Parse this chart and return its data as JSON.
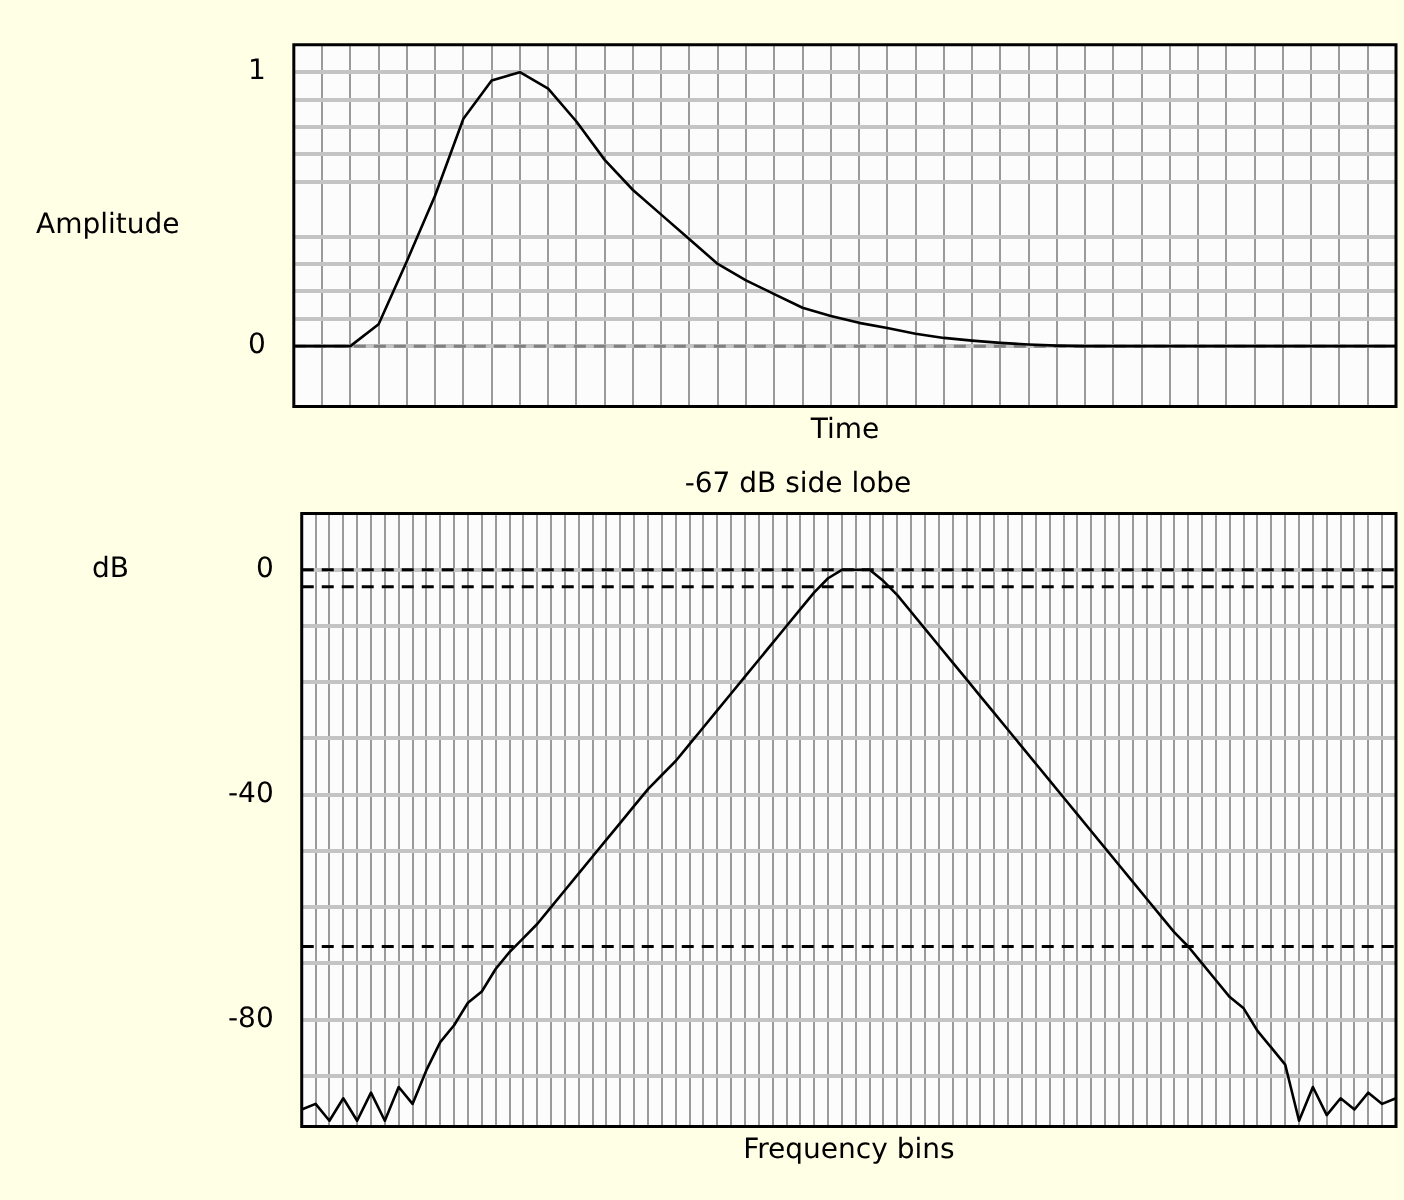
{
  "chart_data": [
    {
      "type": "line",
      "xlabel": "Time",
      "ylabel": "Amplitude",
      "categories": [
        null,
        null,
        null,
        null,
        null,
        null,
        null,
        null,
        null,
        null,
        null,
        null,
        null,
        null,
        null,
        null,
        null,
        null,
        null,
        null,
        null,
        null,
        null,
        null,
        null,
        null,
        null,
        null,
        null,
        null,
        null,
        null,
        null,
        null,
        null,
        null,
        null,
        null,
        null,
        null
      ],
      "values": [
        0,
        0,
        0,
        0.08,
        0.31,
        0.55,
        0.83,
        0.97,
        1,
        0.94,
        0.82,
        0.68,
        0.57,
        0.48,
        0.39,
        0.3,
        0.24,
        0.19,
        0.14,
        0.11,
        0.085,
        0.066,
        0.045,
        0.03,
        0.02,
        0.012,
        0.006,
        0.002,
        0,
        0,
        0,
        0,
        0,
        0,
        0,
        0,
        0,
        0,
        0,
        0
      ],
      "color": "#000000",
      "ylim": [
        -0.22,
        1.1
      ],
      "yticks": [
        0,
        {
          "value": 0.1,
          "label": null
        },
        {
          "value": 0.2,
          "label": null
        },
        {
          "value": 0.3,
          "label": null
        },
        {
          "value": 0.4,
          "label": null
        },
        {
          "value": 0.6,
          "label": null
        },
        {
          "value": 0.7,
          "label": null
        },
        {
          "value": 0.8,
          "label": null
        },
        {
          "value": 0.9,
          "label": null
        },
        1
      ],
      "grid": true,
      "legend": false,
      "marker": "none",
      "line_style": "solid",
      "ref_lines": [
        {
          "axis": "y",
          "value": 0,
          "color": "#808080",
          "line_style": "dashed"
        }
      ]
    },
    {
      "type": "line",
      "title": "-67 dB side lobe",
      "xlabel": "Frequency bins",
      "ylabel": "dB",
      "categories": [
        null,
        null,
        null,
        null,
        null,
        null,
        null,
        null,
        null,
        null,
        null,
        null,
        null,
        null,
        null,
        null,
        null,
        null,
        null,
        null,
        null,
        null,
        null,
        null,
        null,
        null,
        null,
        null,
        null,
        null,
        null,
        null,
        null,
        null,
        null,
        null,
        null,
        null,
        null,
        null,
        null,
        null,
        null,
        null,
        null,
        null,
        null,
        null,
        null,
        null,
        null,
        null,
        null,
        null,
        null,
        null,
        null,
        null,
        null,
        null,
        null,
        null,
        null,
        null,
        null,
        null,
        null,
        null,
        null,
        null,
        null,
        null,
        null,
        null,
        null,
        null,
        null,
        null,
        null,
        null
      ],
      "values": [
        -96,
        -95,
        -98,
        -94,
        -98,
        -93,
        -98,
        -92,
        -95,
        -89,
        -84,
        -81,
        -77,
        -75,
        -71,
        -68,
        -65.5,
        -63,
        -60,
        -57,
        -54,
        -51,
        -48,
        -45,
        -42,
        -39,
        -36.5,
        -34,
        -31,
        -28,
        -25,
        -22,
        -19,
        -16,
        -13,
        -10,
        -7,
        -4,
        -1.5,
        0,
        0,
        0,
        -2,
        -4.5,
        -7.5,
        -10.5,
        -13.5,
        -16.5,
        -19.5,
        -22.5,
        -25.5,
        -28.5,
        -31.5,
        -34.5,
        -37.5,
        -40.5,
        -43.5,
        -46.5,
        -49.5,
        -52.5,
        -55.5,
        -58.5,
        -61.5,
        -64.5,
        -67,
        -70,
        -73,
        -76,
        -78,
        -82,
        -85,
        -88,
        -98,
        -92,
        -97,
        -94,
        -96,
        -93,
        -95,
        -94
      ],
      "color": "#000000",
      "ylim": [
        -99,
        10
      ],
      "yticks": [
        {
          "value": -90,
          "label": null
        },
        -80,
        {
          "value": -70,
          "label": null
        },
        {
          "value": -60,
          "label": null
        },
        {
          "value": -50,
          "label": null
        },
        -40,
        {
          "value": -30,
          "label": null
        },
        {
          "value": -20,
          "label": null
        },
        {
          "value": -10,
          "label": null
        },
        0
      ],
      "grid": true,
      "legend": false,
      "marker": "none",
      "line_style": "solid",
      "ref_lines": [
        {
          "axis": "y",
          "value": 0,
          "color": "#000000",
          "line_style": "dashed"
        },
        {
          "axis": "y",
          "value": -3,
          "color": "#000000",
          "line_style": "dashed"
        },
        {
          "axis": "y",
          "value": -67,
          "color": "#000000",
          "line_style": "dashed"
        }
      ]
    }
  ]
}
